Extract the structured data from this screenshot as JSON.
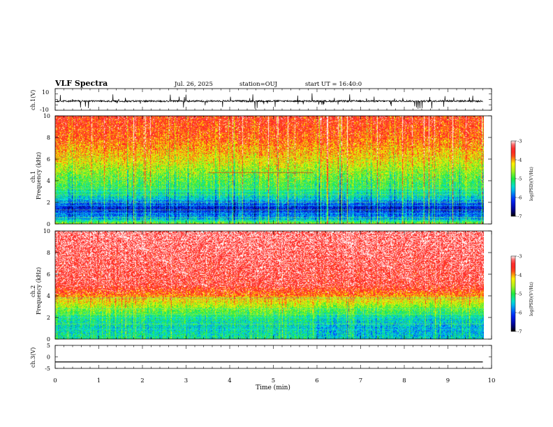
{
  "header": {
    "title": "VLF Spectra",
    "date": "Jul. 26, 2025",
    "station": "station=OUJ",
    "start": "start UT = 16:40:0"
  },
  "colorbar": {
    "label": "log(PSD)(V²/Hz)",
    "ticks": [
      "-3",
      "-4",
      "-5",
      "-6",
      "-7"
    ],
    "range": [
      -7,
      -3
    ]
  },
  "chart_data": [
    {
      "type": "line",
      "panel": "ch1-waveform",
      "ylabel": "ch.1(V)",
      "yticks": [
        "10",
        "-10"
      ],
      "ylim": [
        -10,
        10
      ],
      "x": [
        0,
        0.5,
        1,
        1.5,
        2,
        2.5,
        3,
        3.5,
        4,
        4.5,
        5,
        5.5,
        6,
        6.5,
        7,
        7.5,
        8,
        8.5,
        9,
        9.5,
        9.8
      ],
      "values": [
        -1.4,
        -1.6,
        -1.5,
        -1.7,
        -1.5,
        -1.6,
        -1.6,
        -1.5,
        -1.4,
        -1.6,
        -1.5,
        -1.5,
        -1.7,
        -1.6,
        -1.5,
        -1.6,
        -1.5,
        -1.6,
        -1.4,
        -1.5,
        -1.6
      ]
    },
    {
      "type": "heatmap",
      "panel": "ch1-spectrogram",
      "ylabel_line1": "ch.1",
      "ylabel_line2": "Frequency (kHz)",
      "yticks": [
        "0",
        "2",
        "4",
        "6",
        "8",
        "10"
      ],
      "ylim": [
        0,
        10
      ],
      "xlim": [
        0,
        9.8
      ],
      "value_range": [
        -7,
        -3
      ],
      "freq_profile": [
        {
          "f": 0,
          "v": -4.5
        },
        {
          "f": 0.5,
          "v": -5.6
        },
        {
          "f": 1.5,
          "v": -6.3
        },
        {
          "f": 2.5,
          "v": -5.4
        },
        {
          "f": 3.5,
          "v": -5.0
        },
        {
          "f": 4.5,
          "v": -4.8
        },
        {
          "f": 6,
          "v": -4.3
        },
        {
          "f": 8,
          "v": -3.8
        },
        {
          "f": 10,
          "v": -3.6
        }
      ],
      "lines_kHz": [
        0.3,
        0.6,
        1.0,
        1.3,
        1.7,
        2.0,
        2.3,
        2.7,
        3.0,
        3.3
      ],
      "segment_line": {
        "x": [
          3.5,
          5.9
        ],
        "f": 4.75
      }
    },
    {
      "type": "heatmap",
      "panel": "ch2-spectrogram",
      "ylabel_line1": "ch.2",
      "ylabel_line2": "Frequency (kHz)",
      "yticks": [
        "0",
        "2",
        "4",
        "6",
        "8",
        "10"
      ],
      "ylim": [
        0,
        10
      ],
      "xlim": [
        0,
        9.8
      ],
      "value_range": [
        -7,
        -3
      ],
      "freq_profile": [
        {
          "f": 0,
          "v": -5.2
        },
        {
          "f": 1,
          "v": -5.4
        },
        {
          "f": 2,
          "v": -5.2
        },
        {
          "f": 3,
          "v": -4.6
        },
        {
          "f": 4,
          "v": -4.0
        },
        {
          "f": 5,
          "v": -3.5
        },
        {
          "f": 10,
          "v": -3.3
        }
      ],
      "lines_kHz": [
        0.9,
        1.4,
        2.0,
        2.3,
        2.8,
        3.6,
        3.8
      ],
      "change_time": 5.95
    },
    {
      "type": "line",
      "panel": "ch3-waveform",
      "ylabel": "ch.3(V)",
      "yticks": [
        "5",
        "0",
        "-5"
      ],
      "ylim": [
        -5,
        5
      ],
      "x": [
        0,
        9.8
      ],
      "values": [
        -2.2,
        -2.2
      ]
    }
  ],
  "xaxis": {
    "label": "Time (min)",
    "ticks": [
      "0",
      "1",
      "2",
      "3",
      "4",
      "5",
      "6",
      "7",
      "8",
      "9",
      "10"
    ],
    "xlim": [
      0,
      10
    ]
  }
}
